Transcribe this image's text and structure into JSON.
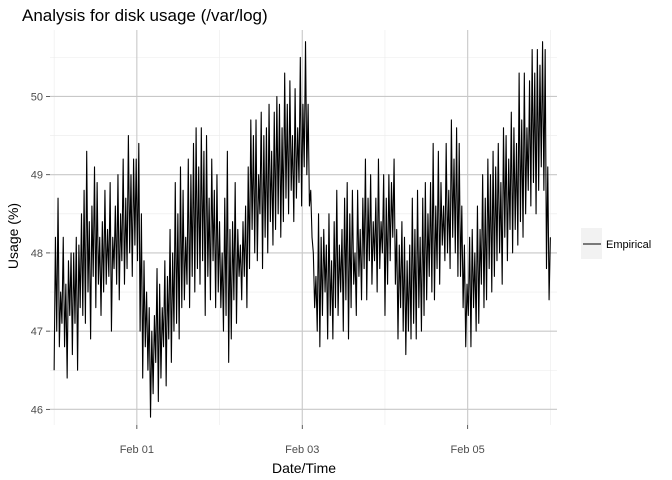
{
  "chart_data": {
    "type": "line",
    "title": "Analysis for disk usage (/var/log)",
    "xlabel": "Date/Time",
    "ylabel": "Usage (%)",
    "x_ticks": [
      {
        "label": "Feb 01",
        "day": 1
      },
      {
        "label": "Feb 03",
        "day": 3
      },
      {
        "label": "Feb 05",
        "day": 5
      }
    ],
    "x_minor_days": [
      0,
      2,
      4,
      6
    ],
    "xlim_days": [
      -0.05,
      6.08
    ],
    "y_ticks": [
      46,
      47,
      48,
      49,
      50
    ],
    "ylim": [
      45.8,
      50.85
    ],
    "grid": true,
    "legend": {
      "position": "right",
      "entries": [
        "Empirical"
      ]
    },
    "series": [
      {
        "name": "Empirical",
        "color": "#000000",
        "x_start_day": 0,
        "x_end_day": 6,
        "values": [
          46.5,
          48.2,
          47.0,
          48.7,
          46.8,
          47.5,
          47.1,
          48.2,
          46.8,
          47.6,
          46.4,
          47.9,
          47.2,
          48.0,
          46.7,
          48.0,
          47.1,
          48.2,
          46.5,
          48.1,
          47.3,
          48.5,
          47.2,
          48.8,
          47.1,
          49.3,
          47.5,
          48.4,
          46.9,
          48.6,
          47.7,
          49.1,
          47.3,
          48.9,
          47.6,
          48.2,
          47.2,
          48.4,
          47.5,
          48.8,
          47.6,
          48.3,
          47.7,
          48.9,
          47.0,
          48.2,
          47.8,
          48.6,
          47.6,
          49.0,
          47.4,
          48.5,
          47.9,
          49.2,
          47.6,
          48.7,
          47.8,
          49.5,
          48.0,
          49.0,
          47.7,
          49.2,
          48.1,
          49.2,
          47.9,
          49.4,
          47.0,
          48.5,
          46.4,
          47.9,
          46.8,
          47.5,
          46.5,
          47.3,
          45.9,
          47.0,
          46.2,
          47.2,
          46.6,
          47.8,
          46.1,
          47.6,
          46.4,
          47.3,
          46.8,
          47.9,
          46.3,
          47.7,
          46.9,
          48.3,
          46.6,
          48.0,
          47.0,
          48.9,
          47.1,
          48.5,
          46.9,
          49.1,
          47.3,
          48.8,
          47.4,
          48.2,
          47.6,
          49.2,
          47.3,
          49.0,
          47.7,
          49.4,
          47.5,
          49.6,
          47.8,
          49.1,
          47.6,
          49.6,
          47.9,
          49.3,
          47.2,
          49.5,
          47.7,
          48.7,
          47.4,
          49.2,
          47.9,
          48.8,
          47.3,
          49.0,
          47.5,
          48.4,
          47.3,
          48.0,
          47.0,
          48.7,
          47.2,
          49.3,
          46.6,
          48.3,
          46.9,
          48.4,
          47.4,
          48.9,
          47.1,
          48.3,
          47.7,
          48.1,
          47.4,
          48.4,
          47.7,
          48.6,
          47.3,
          49.1,
          47.8,
          49.7,
          48.3,
          49.5,
          48.0,
          49.7,
          47.9,
          49.0,
          48.5,
          49.8,
          47.8,
          49.5,
          48.2,
          49.6,
          48.0,
          49.9,
          48.4,
          49.3,
          48.1,
          49.8,
          48.3,
          50.0,
          48.5,
          49.9,
          48.2,
          49.6,
          48.4,
          50.3,
          48.7,
          49.9,
          48.5,
          50.2,
          48.8,
          49.5,
          48.4,
          50.1,
          48.7,
          49.6,
          48.9,
          50.5,
          48.6,
          49.9,
          49.1,
          50.7,
          49.0,
          49.9,
          48.6,
          48.8,
          48.2,
          48.0,
          47.3,
          47.7,
          47.0,
          48.5,
          46.8,
          48.2,
          47.2,
          48.3,
          47.5,
          48.1,
          46.9,
          48.5,
          47.2,
          47.9,
          46.9,
          48.4,
          47.3,
          48.8,
          47.2,
          48.1,
          47.5,
          48.3,
          47.0,
          48.7,
          47.4,
          48.9,
          46.9,
          48.5,
          47.3,
          48.8,
          47.6,
          48.0,
          47.2,
          48.8,
          47.7,
          48.3,
          47.4,
          48.7,
          47.8,
          49.2,
          47.4,
          48.7,
          47.9,
          49.0,
          47.6,
          48.4,
          47.9,
          48.7,
          47.5,
          49.2,
          47.8,
          48.4,
          48.0,
          49.0,
          47.2,
          48.7,
          47.6,
          49.0,
          47.9,
          48.9,
          48.2,
          49.2,
          47.6,
          48.3,
          46.9,
          48.1,
          47.3,
          48.4,
          47.0,
          48.2,
          46.7,
          47.9,
          47.0,
          48.1,
          46.9,
          48.7,
          47.1,
          48.3,
          46.9,
          48.8,
          47.3,
          48.2,
          47.0,
          48.7,
          47.2,
          48.9,
          47.4,
          48.5,
          47.7,
          48.9,
          47.5,
          49.4,
          47.4,
          48.6,
          47.8,
          49.3,
          47.6,
          48.9,
          48.1,
          48.6,
          47.9,
          49.4,
          48.0,
          48.8,
          47.8,
          49.7,
          48.2,
          49.2,
          48.0,
          49.6,
          47.7,
          49.4,
          47.7,
          48.6,
          47.3,
          48.1,
          46.8,
          47.6,
          47.2,
          48.2,
          46.8,
          48.3,
          47.3,
          48.0,
          47.0,
          48.6,
          47.1,
          48.3,
          47.6,
          49.0,
          47.3,
          48.7,
          47.4,
          49.2,
          47.8,
          49.0,
          47.5,
          49.3,
          47.7,
          49.1,
          47.9,
          49.4,
          48.0,
          48.9,
          47.6,
          49.6,
          48.2,
          49.5,
          47.9,
          49.2,
          48.3,
          49.8,
          48.0,
          49.6,
          48.3,
          49.4,
          48.1,
          50.3,
          48.4,
          49.7,
          48.2,
          50.3,
          48.5,
          49.6,
          48.8,
          50.2,
          48.6,
          50.6,
          48.9,
          50.3,
          48.5,
          50.6,
          48.8,
          50.4,
          49.1,
          50.7,
          48.8,
          50.6,
          47.8,
          49.1,
          47.4,
          48.2
        ]
      }
    ]
  }
}
